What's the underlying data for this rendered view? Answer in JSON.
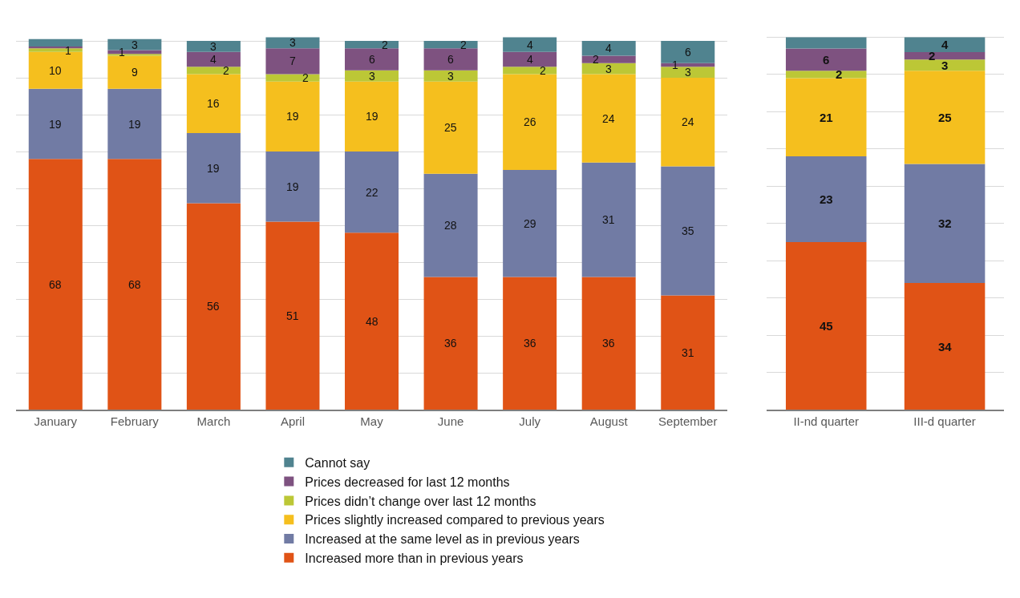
{
  "chart_data": [
    {
      "type": "bar",
      "stacked": true,
      "categories": [
        "January",
        "February",
        "March",
        "April",
        "May",
        "June",
        "July",
        "August",
        "September"
      ],
      "tick_labels": "x",
      "grid": "y",
      "legend": "bottom",
      "series": [
        {
          "name": "Increased more than in previous years",
          "color": "#e05316",
          "values": [
            68,
            68,
            56,
            51,
            48,
            36,
            36,
            36,
            31
          ],
          "value_labels": [
            "68",
            "68",
            "56",
            "51",
            "48",
            "36",
            "36",
            "36",
            "31"
          ]
        },
        {
          "name": "Increased at the same level as in previous years",
          "color": "#717ba4",
          "values": [
            19,
            19,
            19,
            19,
            22,
            28,
            29,
            31,
            35
          ],
          "value_labels": [
            "19",
            "19",
            "19",
            "19",
            "22",
            "28",
            "29",
            "31",
            "35"
          ]
        },
        {
          "name": "Prices slightly increased compared to previous years",
          "color": "#f5bf1e",
          "values": [
            10,
            9,
            16,
            19,
            19,
            25,
            26,
            24,
            24
          ],
          "value_labels": [
            "10",
            "9",
            "16",
            "19",
            "19",
            "25",
            "26",
            "24",
            "24"
          ]
        },
        {
          "name": "Prices didn’t change over last 12 months",
          "color": "#bcc736",
          "values": [
            1,
            0.5,
            2,
            2,
            3,
            3,
            2,
            3,
            3
          ],
          "value_labels": [
            "1",
            null,
            "2",
            "2",
            "3",
            "3",
            "2",
            "3",
            "3"
          ]
        },
        {
          "name": "Prices decreased for last 12 months",
          "color": "#7e5280",
          "values": [
            0.5,
            1,
            4,
            7,
            6,
            6,
            4,
            2,
            1
          ],
          "value_labels": [
            null,
            "1",
            "4",
            "7",
            "6",
            "6",
            "4",
            "2",
            "1"
          ]
        },
        {
          "name": "Cannot say",
          "color": "#50838f",
          "values": [
            2,
            3,
            3,
            3,
            2,
            2,
            4,
            4,
            6
          ],
          "value_labels": [
            null,
            "3",
            "3",
            "3",
            "2",
            "2",
            "4",
            "4",
            "6"
          ]
        }
      ]
    },
    {
      "type": "bar",
      "stacked": true,
      "categories": [
        "II-nd quarter",
        "III-d quarter"
      ],
      "tick_labels": "x",
      "grid": "y",
      "series": [
        {
          "color": "#e05316",
          "values": [
            45,
            34
          ],
          "value_labels": [
            "45",
            "34"
          ]
        },
        {
          "color": "#717ba4",
          "values": [
            23,
            32
          ],
          "value_labels": [
            "23",
            "32"
          ]
        },
        {
          "color": "#f5bf1e",
          "values": [
            21,
            25
          ],
          "value_labels": [
            "21",
            "25"
          ]
        },
        {
          "color": "#bcc736",
          "values": [
            2,
            3
          ],
          "value_labels": [
            "2",
            "3"
          ]
        },
        {
          "color": "#7e5280",
          "values": [
            6,
            2
          ],
          "value_labels": [
            "6",
            "2"
          ]
        },
        {
          "color": "#50838f",
          "values": [
            3,
            4
          ],
          "value_labels": [
            null,
            "4"
          ]
        }
      ]
    }
  ]
}
